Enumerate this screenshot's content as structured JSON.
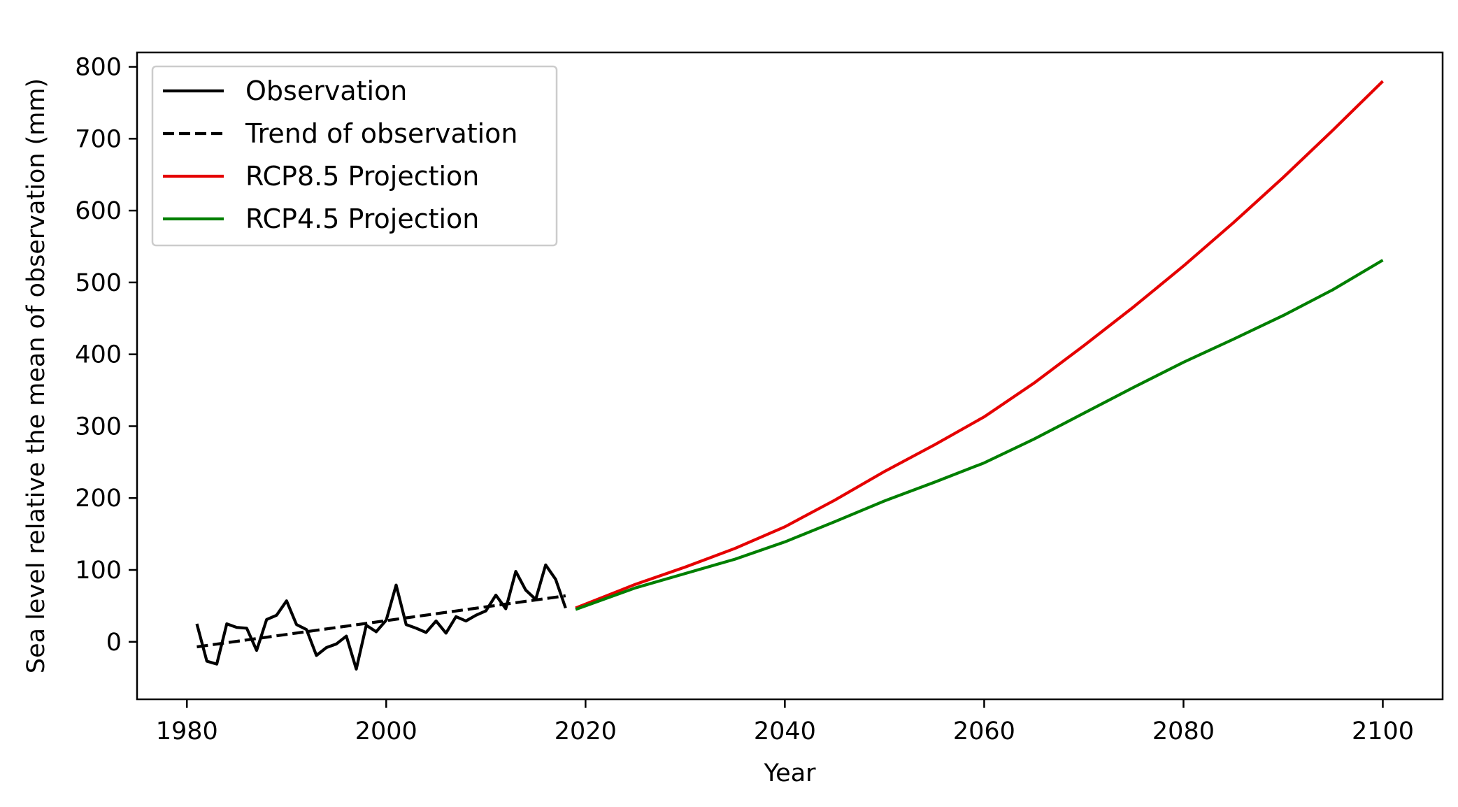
{
  "chart_data": {
    "type": "line",
    "xlabel": "Year",
    "ylabel": "Sea level relative the mean of observation (mm)",
    "xlim": [
      1975,
      2106
    ],
    "ylim": [
      -80,
      820
    ],
    "xticks": [
      "1980",
      "2000",
      "2020",
      "2040",
      "2060",
      "2080",
      "2100"
    ],
    "yticks": [
      "0",
      "100",
      "200",
      "300",
      "400",
      "500",
      "600",
      "700",
      "800"
    ],
    "grid": false,
    "legend_position": "top-left",
    "series": [
      {
        "name": "Observation",
        "color": "#000000",
        "style": "solid",
        "x": [
          1981,
          1982,
          1983,
          1984,
          1985,
          1986,
          1987,
          1988,
          1989,
          1990,
          1991,
          1992,
          1993,
          1994,
          1995,
          1996,
          1997,
          1998,
          1999,
          2000,
          2001,
          2002,
          2003,
          2004,
          2005,
          2006,
          2007,
          2008,
          2009,
          2010,
          2011,
          2012,
          2013,
          2014,
          2015,
          2016,
          2017,
          2018
        ],
        "y": [
          25,
          -27,
          -31,
          25,
          20,
          19,
          -12,
          31,
          37,
          57,
          24,
          17,
          -19,
          -8,
          -3,
          8,
          -38,
          23,
          14,
          30,
          79,
          24,
          19,
          13,
          29,
          12,
          35,
          29,
          37,
          43,
          65,
          46,
          98,
          72,
          59,
          107,
          87,
          47
        ]
      },
      {
        "name": "Trend of observation",
        "color": "#000000",
        "style": "dashed",
        "x": [
          1981,
          2018
        ],
        "y": [
          -7,
          64
        ]
      },
      {
        "name": "RCP8.5 Projection",
        "color": "#e50000",
        "style": "solid",
        "x": [
          2019,
          2025,
          2030,
          2035,
          2040,
          2045,
          2050,
          2055,
          2060,
          2065,
          2070,
          2075,
          2080,
          2085,
          2090,
          2095,
          2100
        ],
        "y": [
          47,
          80,
          104,
          130,
          160,
          197,
          237,
          274,
          313,
          360,
          412,
          466,
          523,
          583,
          646,
          712,
          780
        ]
      },
      {
        "name": "RCP4.5 Projection",
        "color": "#007f00",
        "style": "solid",
        "x": [
          2019,
          2025,
          2030,
          2035,
          2040,
          2045,
          2050,
          2055,
          2060,
          2065,
          2070,
          2075,
          2080,
          2085,
          2090,
          2095,
          2100
        ],
        "y": [
          45,
          75,
          95,
          115,
          139,
          167,
          196,
          222,
          249,
          282,
          318,
          354,
          389,
          421,
          454,
          490,
          531
        ]
      }
    ]
  }
}
